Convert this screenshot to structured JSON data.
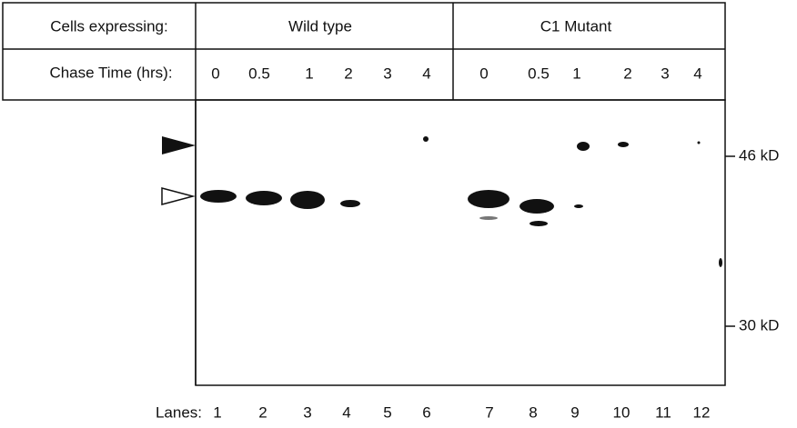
{
  "header": {
    "row1_label": "Cells expressing:",
    "groups": [
      "Wild type",
      "C1 Mutant"
    ],
    "row2_label": "Chase Time (hrs):",
    "chase_times": [
      [
        "0",
        "0.5",
        "1",
        "2",
        "3",
        "4"
      ],
      [
        "0",
        "0.5",
        "1",
        "2",
        "3",
        "4"
      ]
    ]
  },
  "markers": [
    "46 kD",
    "30 kD"
  ],
  "lanes": {
    "label": "Lanes:",
    "numbers": [
      "1",
      "2",
      "3",
      "4",
      "5",
      "6",
      "7",
      "8",
      "9",
      "10",
      "11",
      "12"
    ]
  }
}
